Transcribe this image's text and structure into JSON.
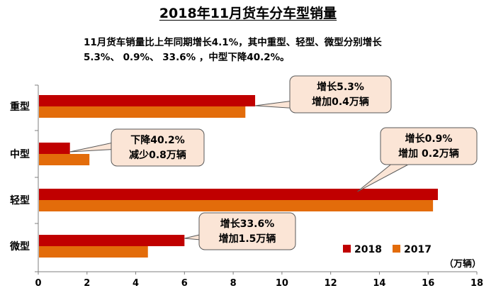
{
  "chart_data": {
    "type": "bar",
    "orientation": "horizontal",
    "title": "2018年11月货车分车型销量",
    "subtitle_lines": [
      "11月货车销量比上年同期增长4.1%，其中重型、轻型、微型分别增长",
      "5.3%、 0.9%、 33.6% ，中型下降40.2%。"
    ],
    "categories": [
      "重型",
      "中型",
      "轻型",
      "微型"
    ],
    "series": [
      {
        "name": "2018",
        "color": "#C00000",
        "values": [
          8.9,
          1.3,
          16.4,
          6.0
        ]
      },
      {
        "name": "2017",
        "color": "#E36C0A",
        "values": [
          8.5,
          2.1,
          16.2,
          4.5
        ]
      }
    ],
    "xlim": [
      0,
      18
    ],
    "xticks": [
      0,
      2,
      4,
      6,
      8,
      10,
      12,
      14,
      16,
      18
    ],
    "unit_label": "（万辆）",
    "legend_position": "bottom-right",
    "grid": false,
    "annotations": [
      {
        "category": "重型",
        "lines": [
          "增长5.3%",
          "增加0.4万辆"
        ]
      },
      {
        "category": "中型",
        "lines": [
          "下降40.2%",
          "减少0.8万辆"
        ]
      },
      {
        "category": "轻型",
        "lines": [
          "增长0.9%",
          "增加 0.2万辆"
        ]
      },
      {
        "category": "微型",
        "lines": [
          "增长33.6%",
          "增加1.5万辆"
        ]
      }
    ]
  }
}
